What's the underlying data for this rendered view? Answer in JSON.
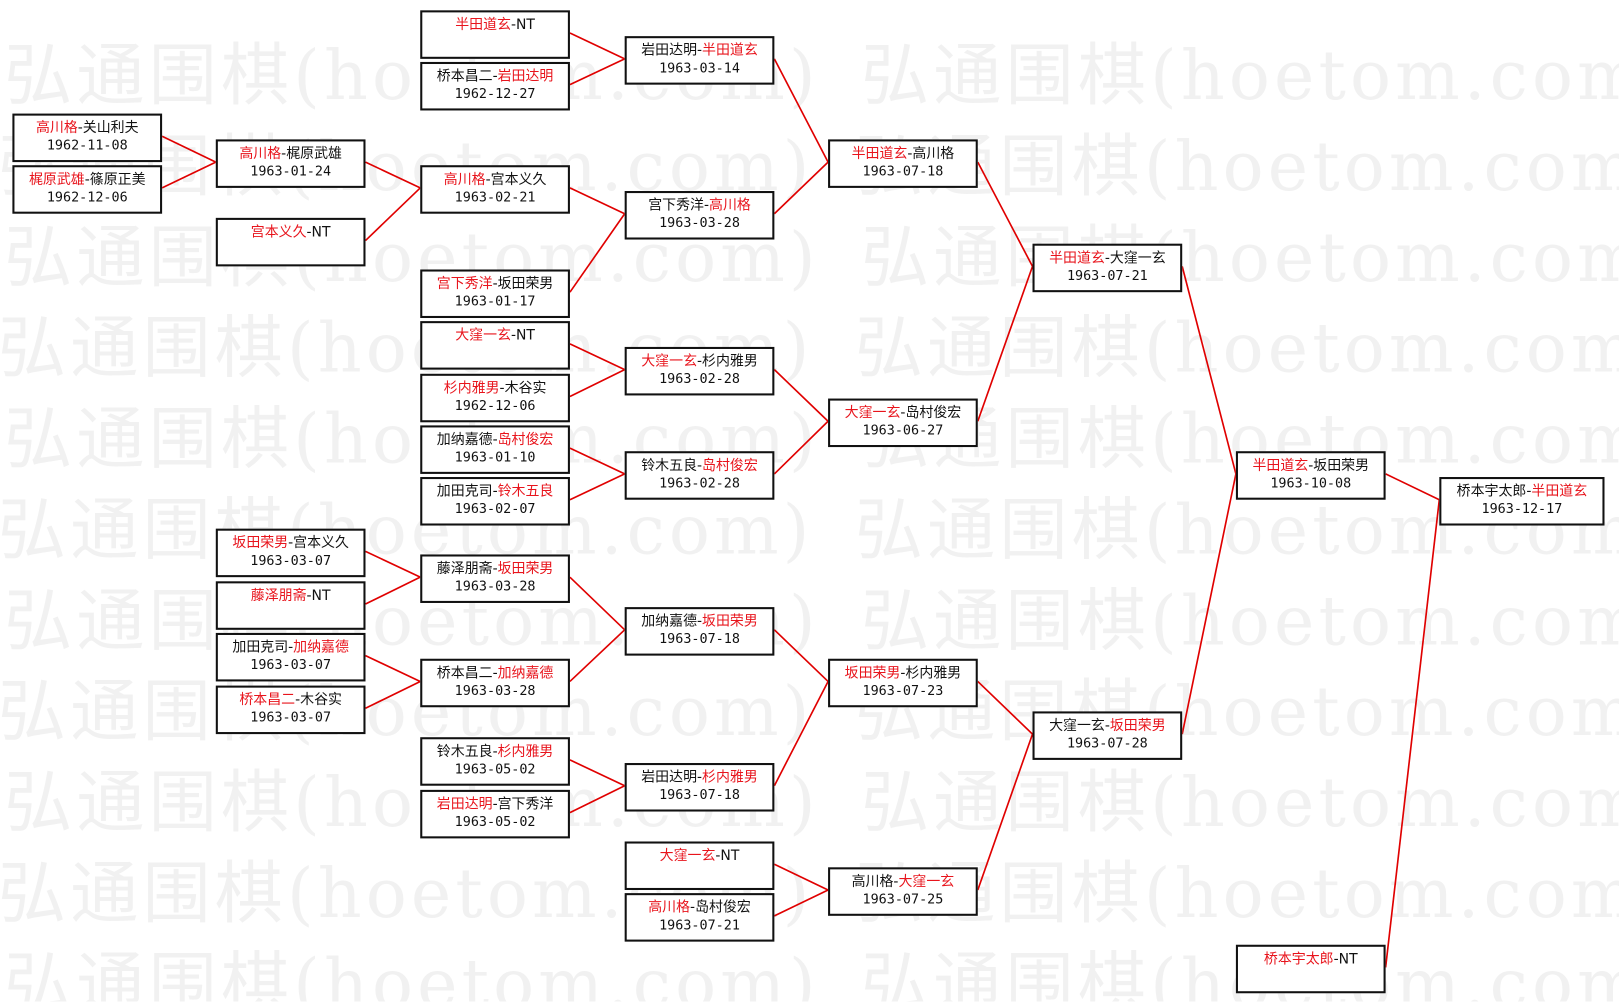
{
  "watermark": "弘通围棋(hoetom.com)",
  "colors": {
    "winner": "#e8141c",
    "line": "#e00000",
    "border": "#111111",
    "watermark": "#f1f1f1"
  },
  "matches": [
    {
      "id": "m1",
      "p1": "高川格",
      "p2": "关山利夫",
      "winner": 1,
      "date": "1962-11-08",
      "from": []
    },
    {
      "id": "m2",
      "p1": "梶原武雄",
      "p2": "篠原正美",
      "winner": 1,
      "date": "1962-12-06",
      "from": []
    },
    {
      "id": "m3",
      "p1": "高川格",
      "p2": "梶原武雄",
      "winner": 1,
      "date": "1963-01-24",
      "from": [
        "m1",
        "m2"
      ]
    },
    {
      "id": "m4",
      "p1": "宫本义久",
      "p2": "NT",
      "winner": 1,
      "date": "",
      "from": []
    },
    {
      "id": "m5",
      "p1": "坂田荣男",
      "p2": "宫本义久",
      "winner": 1,
      "date": "1963-03-07",
      "from": []
    },
    {
      "id": "m6",
      "p1": "藤泽朋斋",
      "p2": "NT",
      "winner": 1,
      "date": "",
      "from": []
    },
    {
      "id": "m7",
      "p1": "加田克司",
      "p2": "加纳嘉德",
      "winner": 2,
      "date": "1963-03-07",
      "from": []
    },
    {
      "id": "m8",
      "p1": "桥本昌二",
      "p2": "木谷实",
      "winner": 1,
      "date": "1963-03-07",
      "from": []
    },
    {
      "id": "m9",
      "p1": "半田道玄",
      "p2": "NT",
      "winner": 1,
      "date": "",
      "from": []
    },
    {
      "id": "m10",
      "p1": "桥本昌二",
      "p2": "岩田达明",
      "winner": 2,
      "date": "1962-12-27",
      "from": []
    },
    {
      "id": "m11",
      "p1": "高川格",
      "p2": "宫本义久",
      "winner": 1,
      "date": "1963-02-21",
      "from": [
        "m3",
        "m4"
      ]
    },
    {
      "id": "m12",
      "p1": "宫下秀洋",
      "p2": "坂田荣男",
      "winner": 1,
      "date": "1963-01-17",
      "from": []
    },
    {
      "id": "m13",
      "p1": "大窪一玄",
      "p2": "NT",
      "winner": 1,
      "date": "",
      "from": []
    },
    {
      "id": "m14",
      "p1": "杉内雅男",
      "p2": "木谷实",
      "winner": 1,
      "date": "1962-12-06",
      "from": []
    },
    {
      "id": "m15",
      "p1": "加纳嘉德",
      "p2": "岛村俊宏",
      "winner": 2,
      "date": "1963-01-10",
      "from": []
    },
    {
      "id": "m16",
      "p1": "加田克司",
      "p2": "铃木五良",
      "winner": 2,
      "date": "1963-02-07",
      "from": []
    },
    {
      "id": "m17",
      "p1": "藤泽朋斋",
      "p2": "坂田荣男",
      "winner": 2,
      "date": "1963-03-28",
      "from": [
        "m5",
        "m6"
      ]
    },
    {
      "id": "m18",
      "p1": "桥本昌二",
      "p2": "加纳嘉德",
      "winner": 2,
      "date": "1963-03-28",
      "from": [
        "m7",
        "m8"
      ]
    },
    {
      "id": "m19",
      "p1": "铃木五良",
      "p2": "杉内雅男",
      "winner": 2,
      "date": "1963-05-02",
      "from": []
    },
    {
      "id": "m20",
      "p1": "岩田达明",
      "p2": "宫下秀洋",
      "winner": 1,
      "date": "1963-05-02",
      "from": []
    },
    {
      "id": "m21",
      "p1": "岩田达明",
      "p2": "半田道玄",
      "winner": 2,
      "date": "1963-03-14",
      "from": [
        "m9",
        "m10"
      ]
    },
    {
      "id": "m22",
      "p1": "宫下秀洋",
      "p2": "高川格",
      "winner": 2,
      "date": "1963-03-28",
      "from": [
        "m11",
        "m12"
      ]
    },
    {
      "id": "m23",
      "p1": "大窪一玄",
      "p2": "杉内雅男",
      "winner": 1,
      "date": "1963-02-28",
      "from": [
        "m13",
        "m14"
      ]
    },
    {
      "id": "m24",
      "p1": "铃木五良",
      "p2": "岛村俊宏",
      "winner": 2,
      "date": "1963-02-28",
      "from": [
        "m15",
        "m16"
      ]
    },
    {
      "id": "m25",
      "p1": "加纳嘉德",
      "p2": "坂田荣男",
      "winner": 2,
      "date": "1963-07-18",
      "from": [
        "m17",
        "m18"
      ]
    },
    {
      "id": "m26",
      "p1": "岩田达明",
      "p2": "杉内雅男",
      "winner": 2,
      "date": "1963-07-18",
      "from": [
        "m19",
        "m20"
      ]
    },
    {
      "id": "m27",
      "p1": "大窪一玄",
      "p2": "NT",
      "winner": 1,
      "date": "",
      "from": []
    },
    {
      "id": "m28",
      "p1": "高川格",
      "p2": "岛村俊宏",
      "winner": 1,
      "date": "1963-07-21",
      "from": []
    },
    {
      "id": "m29",
      "p1": "半田道玄",
      "p2": "高川格",
      "winner": 1,
      "date": "1963-07-18",
      "from": [
        "m21",
        "m22"
      ]
    },
    {
      "id": "m30",
      "p1": "大窪一玄",
      "p2": "岛村俊宏",
      "winner": 1,
      "date": "1963-06-27",
      "from": [
        "m23",
        "m24"
      ]
    },
    {
      "id": "m31",
      "p1": "坂田荣男",
      "p2": "杉内雅男",
      "winner": 1,
      "date": "1963-07-23",
      "from": [
        "m25",
        "m26"
      ]
    },
    {
      "id": "m32",
      "p1": "高川格",
      "p2": "大窪一玄",
      "winner": 2,
      "date": "1963-07-25",
      "from": [
        "m27",
        "m28"
      ]
    },
    {
      "id": "m33",
      "p1": "半田道玄",
      "p2": "大窪一玄",
      "winner": 1,
      "date": "1963-07-21",
      "from": [
        "m29",
        "m30"
      ]
    },
    {
      "id": "m34",
      "p1": "大窪一玄",
      "p2": "坂田荣男",
      "winner": 2,
      "date": "1963-07-28",
      "from": [
        "m31",
        "m32"
      ]
    },
    {
      "id": "m35",
      "p1": "半田道玄",
      "p2": "坂田荣男",
      "winner": 1,
      "date": "1963-10-08",
      "from": [
        "m33",
        "m34"
      ]
    },
    {
      "id": "m36",
      "p1": "桥本宇太郎",
      "p2": "NT",
      "winner": 1,
      "date": "",
      "from": []
    },
    {
      "id": "m37",
      "p1": "桥本宇太郎",
      "p2": "半田道玄",
      "winner": 2,
      "date": "1963-12-17",
      "from": [
        "m35",
        "m36"
      ]
    }
  ]
}
